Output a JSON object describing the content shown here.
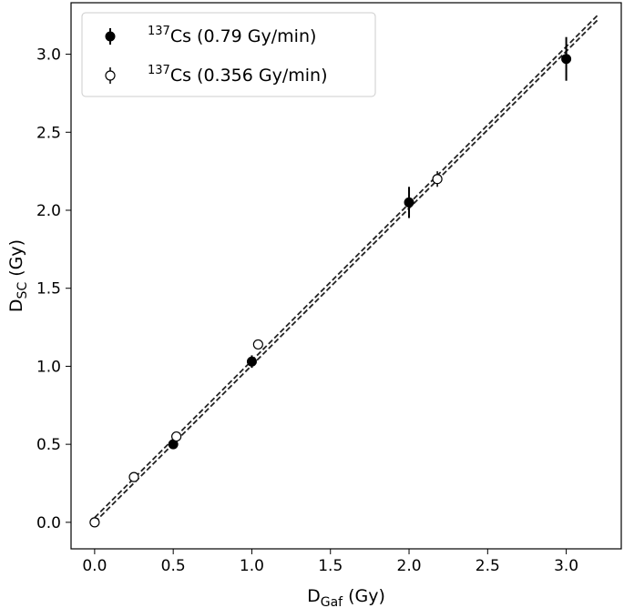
{
  "chart_data": {
    "type": "scatter",
    "xlabel": {
      "main": "D",
      "sub": "Gaf",
      "unit": " (Gy)"
    },
    "ylabel": {
      "main": "D",
      "sub": "SC",
      "unit": " (Gy)"
    },
    "xlim": [
      -0.15,
      3.35
    ],
    "ylim": [
      -0.17,
      3.33
    ],
    "xticks": [
      "0.0",
      "0.5",
      "1.0",
      "1.5",
      "2.0",
      "2.5",
      "3.0"
    ],
    "yticks": [
      "0.0",
      "0.5",
      "1.0",
      "1.5",
      "2.0",
      "2.5",
      "3.0"
    ],
    "legend_position": "upper-left",
    "series": [
      {
        "name": {
          "sup": "137",
          "text": "Cs (0.79 Gy/min)"
        },
        "marker": "filled-circle",
        "color": "#000000",
        "points": [
          {
            "x": 0.5,
            "y": 0.5,
            "yerr": 0.03
          },
          {
            "x": 1.0,
            "y": 1.03,
            "yerr": 0.04
          },
          {
            "x": 2.0,
            "y": 2.05,
            "yerr": 0.1
          },
          {
            "x": 3.0,
            "y": 2.97,
            "yerr": 0.14
          }
        ],
        "fit": {
          "x": [
            0.0,
            3.2
          ],
          "y": [
            0.03,
            3.25
          ]
        }
      },
      {
        "name": {
          "sup": "137",
          "text": "Cs (0.356 Gy/min)"
        },
        "marker": "open-circle",
        "color": "#000000",
        "points": [
          {
            "x": 0.0,
            "y": 0.0,
            "yerr": 0.01
          },
          {
            "x": 0.25,
            "y": 0.29,
            "yerr": 0.02
          },
          {
            "x": 0.52,
            "y": 0.55,
            "yerr": 0.02
          },
          {
            "x": 1.04,
            "y": 1.14,
            "yerr": 0.03
          },
          {
            "x": 2.18,
            "y": 2.2,
            "yerr": 0.05
          }
        ],
        "fit": {
          "x": [
            0.0,
            3.2
          ],
          "y": [
            0.0,
            3.22
          ]
        }
      }
    ]
  }
}
